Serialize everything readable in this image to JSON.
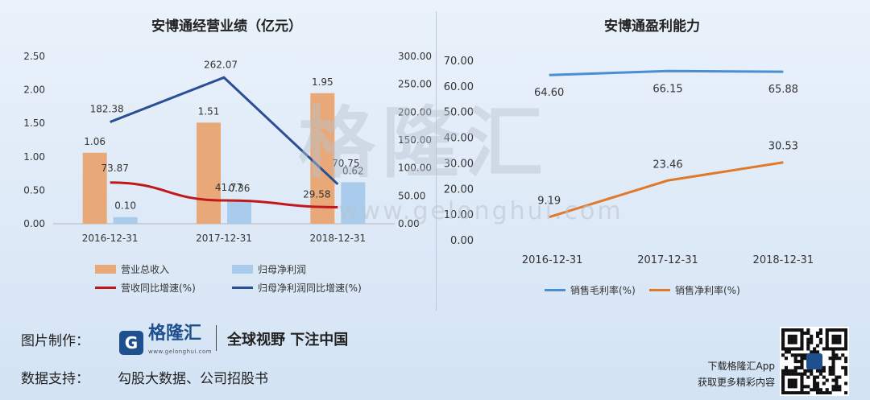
{
  "chart_data": [
    {
      "type": "bar",
      "title": "安博通经营业绩（亿元）",
      "categories": [
        "2016-12-31",
        "2017-12-31",
        "2018-12-31"
      ],
      "y_left_ticks": [
        "0.00",
        "0.50",
        "1.00",
        "1.50",
        "2.00",
        "2.50"
      ],
      "y_left_range": [
        0,
        2.5
      ],
      "y_right_ticks": [
        "0.00",
        "50.00",
        "100.00",
        "150.00",
        "200.00",
        "250.00",
        "300.00"
      ],
      "y_right_range": [
        0,
        300
      ],
      "series": [
        {
          "name": "营业总收入",
          "kind": "bar",
          "axis": "left",
          "color": "#e8a878",
          "values": [
            1.06,
            1.51,
            1.95
          ],
          "labels": [
            "1.06",
            "1.51",
            "1.95"
          ]
        },
        {
          "name": "归母净利润",
          "kind": "bar",
          "axis": "left",
          "color": "#a9cbec",
          "values": [
            0.1,
            0.36,
            0.62
          ],
          "labels": [
            "0.10",
            "0.36",
            "0.62"
          ]
        },
        {
          "name": "营收同比增速(%)",
          "kind": "line",
          "axis": "right",
          "color": "#c0191b",
          "values": [
            73.87,
            41.77,
            29.58
          ],
          "labels": [
            "73.87",
            "41.77",
            "29.58"
          ]
        },
        {
          "name": "归母净利润同比增速(%)",
          "kind": "line",
          "axis": "right",
          "color": "#2a4f96",
          "values": [
            182.38,
            262.07,
            70.75
          ],
          "labels": [
            "182.38",
            "262.07",
            "70.75"
          ]
        }
      ]
    },
    {
      "type": "line",
      "title": "安博通盈利能力",
      "categories": [
        "2016-12-31",
        "2017-12-31",
        "2018-12-31"
      ],
      "y_ticks": [
        "0.00",
        "10.00",
        "20.00",
        "30.00",
        "40.00",
        "50.00",
        "60.00",
        "70.00"
      ],
      "ylim": [
        0,
        70
      ],
      "series": [
        {
          "name": "销售毛利率(%)",
          "color": "#4a8fd4",
          "values": [
            64.6,
            66.15,
            65.88
          ],
          "labels": [
            "64.60",
            "66.15",
            "65.88"
          ]
        },
        {
          "name": "销售净利率(%)",
          "color": "#e07a2a",
          "values": [
            9.19,
            23.46,
            30.53
          ],
          "labels": [
            "9.19",
            "23.46",
            "30.53"
          ]
        }
      ]
    }
  ],
  "watermark": {
    "text": "格隆汇",
    "url": "www.gelonghui.com"
  },
  "footer": {
    "made_by_label": "图片制作：",
    "logo_name": "格隆汇",
    "logo_url": "www.gelonghui.com",
    "slogan": "全球视野 下注中国",
    "data_source_label": "数据支持：",
    "data_source": "勾股大数据、公司招股书",
    "app_line1": "下载格隆汇App",
    "app_line2": "获取更多精彩内容"
  }
}
